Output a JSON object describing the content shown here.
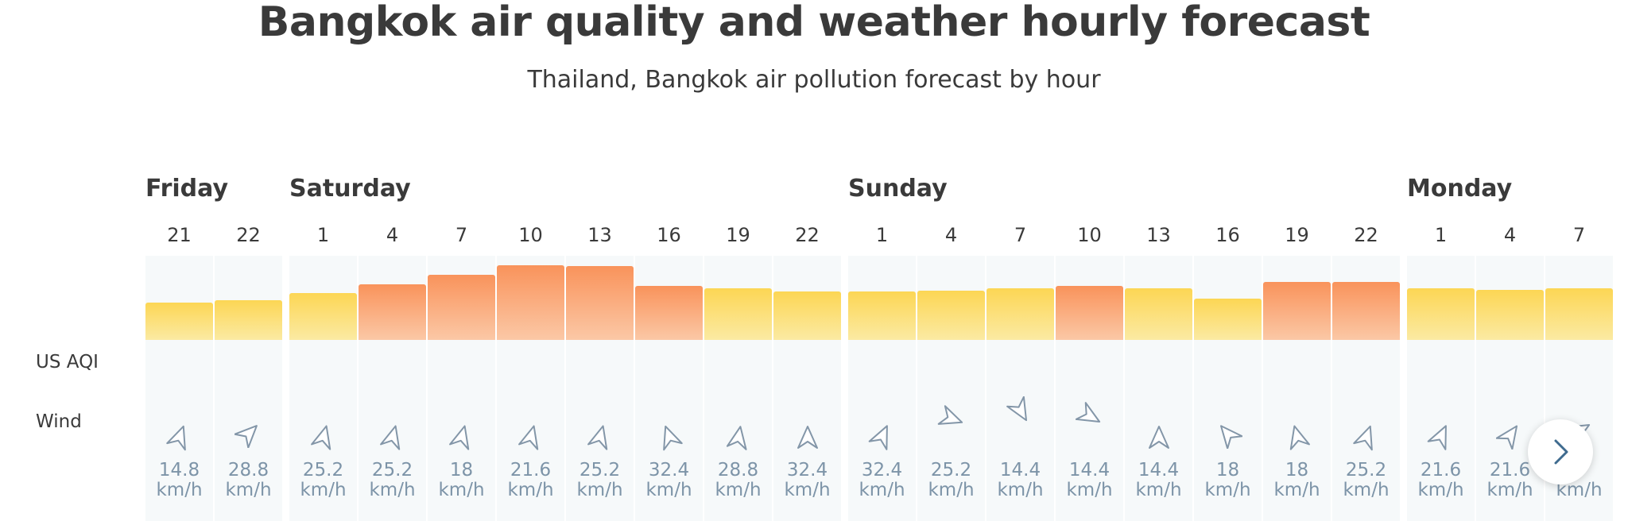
{
  "header": {
    "title": "Bangkok air quality and weather hourly forecast",
    "subtitle": "Thailand, Bangkok air pollution forecast by hour"
  },
  "row_labels": {
    "aqi": "US AQI",
    "wind": "Wind"
  },
  "colors": {
    "moderate": "#fcd654",
    "unhealthy_sensitive": "#f9935b",
    "wind_text": "#7d94a8"
  },
  "days": [
    {
      "name": "Friday",
      "start_index": 0
    },
    {
      "name": "Saturday",
      "start_index": 2
    },
    {
      "name": "Sunday",
      "start_index": 10
    },
    {
      "name": "Monday",
      "start_index": 18
    }
  ],
  "speed_unit": "km/h",
  "hours": [
    {
      "hour": "21",
      "aqi_level": 0.44,
      "category": "moderate",
      "wind_dir": 200,
      "wind_speed": "14.8"
    },
    {
      "hour": "22",
      "aqi_level": 0.47,
      "category": "moderate",
      "wind_dir": 225,
      "wind_speed": "28.8"
    },
    {
      "hour": "1",
      "aqi_level": 0.55,
      "category": "moderate",
      "wind_dir": 195,
      "wind_speed": "25.2"
    },
    {
      "hour": "4",
      "aqi_level": 0.65,
      "category": "unhealthy_sensitive",
      "wind_dir": 195,
      "wind_speed": "25.2"
    },
    {
      "hour": "7",
      "aqi_level": 0.77,
      "category": "unhealthy_sensitive",
      "wind_dir": 195,
      "wind_speed": "18"
    },
    {
      "hour": "10",
      "aqi_level": 0.88,
      "category": "unhealthy_sensitive",
      "wind_dir": 195,
      "wind_speed": "21.6"
    },
    {
      "hour": "13",
      "aqi_level": 0.87,
      "category": "unhealthy_sensitive",
      "wind_dir": 195,
      "wind_speed": "25.2"
    },
    {
      "hour": "16",
      "aqi_level": 0.64,
      "category": "unhealthy_sensitive",
      "wind_dir": 160,
      "wind_speed": "32.4"
    },
    {
      "hour": "19",
      "aqi_level": 0.61,
      "category": "moderate",
      "wind_dir": 190,
      "wind_speed": "28.8"
    },
    {
      "hour": "22",
      "aqi_level": 0.57,
      "category": "moderate",
      "wind_dir": 180,
      "wind_speed": "32.4"
    },
    {
      "hour": "1",
      "aqi_level": 0.57,
      "category": "moderate",
      "wind_dir": 205,
      "wind_speed": "32.4"
    },
    {
      "hour": "4",
      "aqi_level": 0.58,
      "category": "moderate",
      "wind_dir": 290,
      "wind_speed": "25.2"
    },
    {
      "hour": "7",
      "aqi_level": 0.61,
      "category": "moderate",
      "wind_dir": 330,
      "wind_speed": "14.4"
    },
    {
      "hour": "10",
      "aqi_level": 0.64,
      "category": "unhealthy_sensitive",
      "wind_dir": 300,
      "wind_speed": "14.4"
    },
    {
      "hour": "13",
      "aqi_level": 0.61,
      "category": "moderate",
      "wind_dir": 180,
      "wind_speed": "14.4"
    },
    {
      "hour": "16",
      "aqi_level": 0.49,
      "category": "moderate",
      "wind_dir": 140,
      "wind_speed": "18"
    },
    {
      "hour": "19",
      "aqi_level": 0.68,
      "category": "unhealthy_sensitive",
      "wind_dir": 165,
      "wind_speed": "18"
    },
    {
      "hour": "22",
      "aqi_level": 0.68,
      "category": "unhealthy_sensitive",
      "wind_dir": 200,
      "wind_speed": "25.2"
    },
    {
      "hour": "1",
      "aqi_level": 0.61,
      "category": "moderate",
      "wind_dir": 205,
      "wind_speed": "21.6"
    },
    {
      "hour": "4",
      "aqi_level": 0.59,
      "category": "moderate",
      "wind_dir": 215,
      "wind_speed": "21.6"
    },
    {
      "hour": "7",
      "aqi_level": 0.61,
      "category": "moderate",
      "wind_dir": 240,
      "wind_speed": "8"
    }
  ]
}
